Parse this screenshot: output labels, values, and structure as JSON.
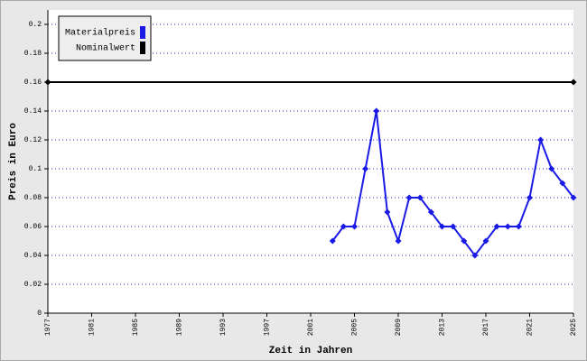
{
  "chart_data": {
    "type": "line",
    "x_label": "Zeit in Jahren",
    "y_label": "Preis in Euro",
    "xlim": [
      1977,
      2025
    ],
    "xticks": [
      1977,
      1981,
      1985,
      1989,
      1993,
      1997,
      2001,
      2005,
      2009,
      2013,
      2017,
      2021,
      2025
    ],
    "ylim": [
      0,
      0.21
    ],
    "yticks": [
      0,
      0.02,
      0.04,
      0.06,
      0.08,
      0.1,
      0.12,
      0.14,
      0.16,
      0.18,
      0.2
    ],
    "grid": true,
    "legend": "upper-left",
    "series": [
      {
        "name": "Materialpreis",
        "color": "#1a1ae6",
        "x": [
          2003,
          2004,
          2005,
          2006,
          2007,
          2008,
          2009,
          2010,
          2011,
          2012,
          2013,
          2014,
          2015,
          2016,
          2017,
          2018,
          2019,
          2020,
          2021,
          2022,
          2023,
          2024,
          2025
        ],
        "values": [
          0.05,
          0.06,
          0.06,
          0.1,
          0.14,
          0.07,
          0.05,
          0.08,
          0.08,
          0.07,
          0.06,
          0.06,
          0.05,
          0.04,
          0.05,
          0.06,
          0.06,
          0.06,
          0.08,
          0.12,
          0.1,
          0.09,
          0.08
        ]
      },
      {
        "name": "Nominalwert",
        "color": "#000000",
        "x": [
          1977,
          2025
        ],
        "values": [
          0.16,
          0.16
        ]
      }
    ]
  }
}
